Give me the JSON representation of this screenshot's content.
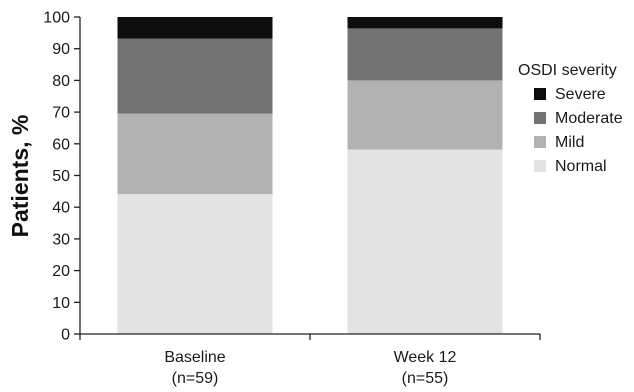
{
  "chart_data": {
    "type": "bar",
    "stacked": true,
    "ylabel": "Patients, %",
    "ylim": [
      0,
      100
    ],
    "yticks": [
      0,
      10,
      20,
      30,
      40,
      50,
      60,
      70,
      80,
      90,
      100
    ],
    "categories": [
      {
        "label": "Baseline",
        "sublabel": "(n=59)"
      },
      {
        "label": "Week 12",
        "sublabel": "(n=55)"
      }
    ],
    "legend": {
      "title": "OSDI severity",
      "position": "right"
    },
    "series": [
      {
        "name": "Normal",
        "color": "#e3e3e3",
        "values": [
          44.1,
          58.2
        ]
      },
      {
        "name": "Mild",
        "color": "#b2b2b2",
        "values": [
          25.4,
          21.8
        ]
      },
      {
        "name": "Moderate",
        "color": "#737373",
        "values": [
          23.7,
          16.4
        ]
      },
      {
        "name": "Severe",
        "color": "#0d0d0d",
        "values": [
          6.8,
          3.6
        ]
      }
    ]
  }
}
